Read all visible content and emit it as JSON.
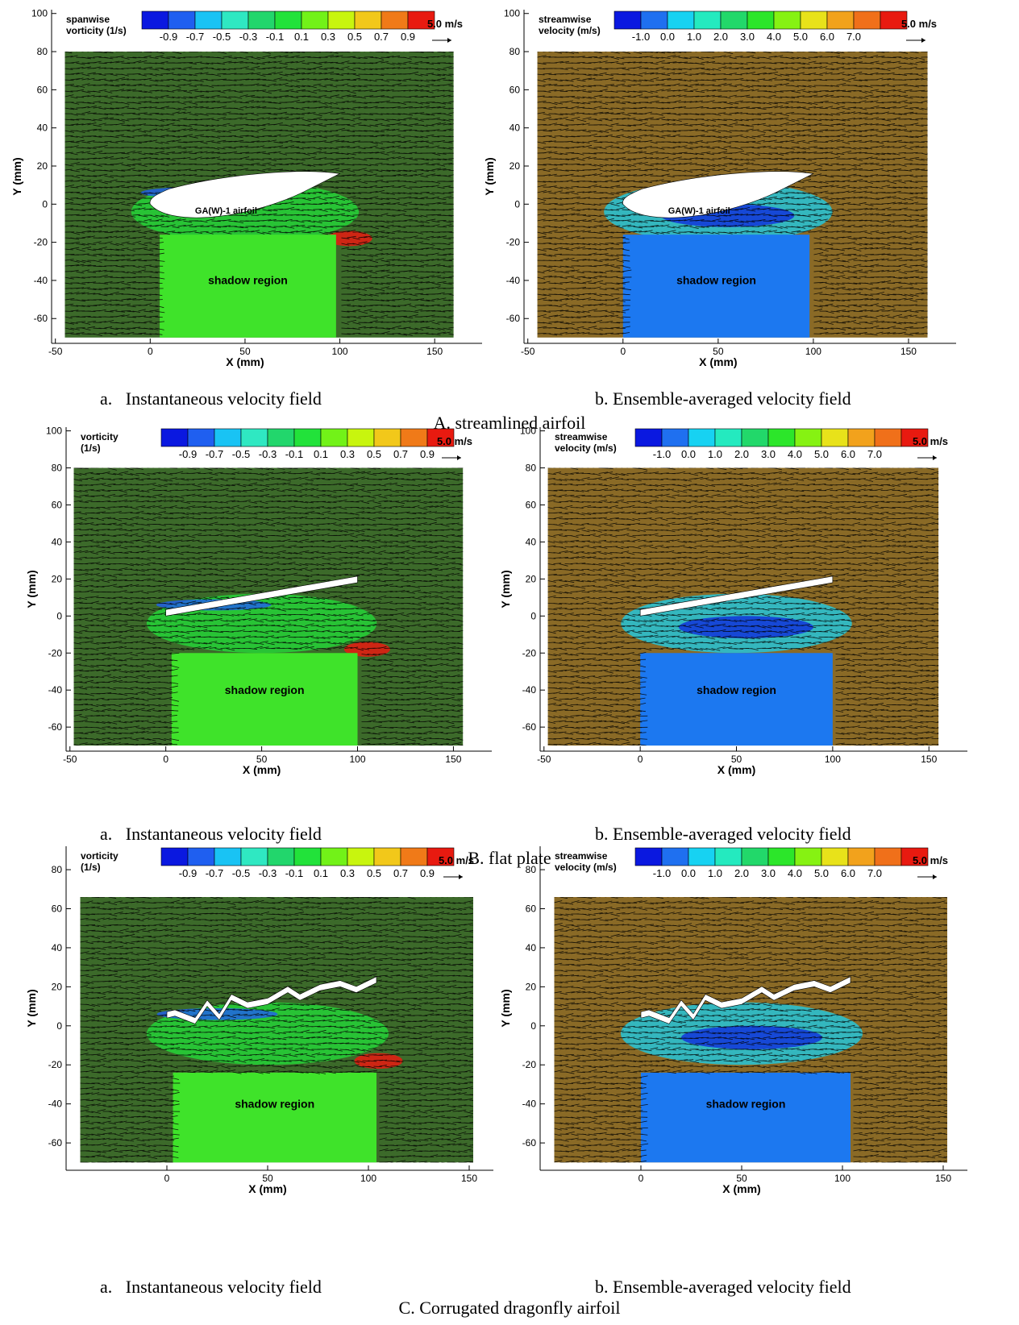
{
  "colors": {
    "vorticity_scale": [
      "#0a18e0",
      "#1f5ff0",
      "#19c3f4",
      "#2fe8c2",
      "#22d66c",
      "#22e23a",
      "#72f218",
      "#c8f50e",
      "#f2c81a",
      "#f07a18",
      "#e81a10"
    ],
    "velocity_scale": [
      "#0a18e0",
      "#1f70f0",
      "#17d2f2",
      "#24eabf",
      "#22d86a",
      "#2ce62a",
      "#86f212",
      "#e8e21a",
      "#f2a21c",
      "#f0701a",
      "#e81a10"
    ],
    "shadow_vorticity": "#3fe32a",
    "shadow_velocity": "#1c78f0",
    "field_vorticity": "#3c6a2a",
    "field_velocity": "#8a6a26",
    "arrows": "#000000",
    "airfoil": "#ffffff"
  },
  "rows": [
    {
      "id": "A",
      "caption": "A. streamlined airfoil",
      "panels": [
        {
          "caption": "a.   Instantaneous velocity field",
          "chart_data": {
            "type": "vector-contour",
            "field": "vorticity",
            "legend_title": [
              "spanwise",
              "vorticity (1/s)"
            ],
            "legend_ticks": [
              "-0.9",
              "-0.7",
              "-0.5",
              "-0.3",
              "-0.1",
              "0.1",
              "0.3",
              "0.5",
              "0.7",
              "0.9"
            ],
            "reference_vector": "5.0 m/s",
            "xlabel": "X (mm)",
            "ylabel": "Y (mm)",
            "xlim": [
              -52,
              175
            ],
            "ylim": [
              -73,
              102
            ],
            "xticks": [
              "-50",
              "0",
              "50",
              "100",
              "150"
            ],
            "yticks": [
              "-60",
              "-40",
              "-20",
              "0",
              "20",
              "40",
              "60",
              "80",
              "100"
            ],
            "field_extent": {
              "x": [
                -45,
                160
              ],
              "y": [
                -70,
                80
              ]
            },
            "body": "airfoil",
            "body_label": "GA(W)-1 airfoil",
            "shadow_label": "shadow region",
            "shadow_extent": {
              "x": [
                5,
                98
              ],
              "y": [
                -70,
                -16
              ]
            }
          }
        },
        {
          "caption": "b. Ensemble-averaged velocity field",
          "chart_data": {
            "type": "vector-contour",
            "field": "velocity",
            "legend_title": [
              "streamwise",
              "velocity (m/s)"
            ],
            "legend_ticks": [
              "-1.0",
              "0.0",
              "1.0",
              "2.0",
              "3.0",
              "4.0",
              "5.0",
              "6.0",
              "7.0"
            ],
            "reference_vector": "5.0 m/s",
            "xlabel": "X (mm)",
            "ylabel": "Y (mm)",
            "xlim": [
              -52,
              175
            ],
            "ylim": [
              -73,
              102
            ],
            "xticks": [
              "-50",
              "0",
              "50",
              "100",
              "150"
            ],
            "yticks": [
              "-60",
              "-40",
              "-20",
              "0",
              "20",
              "40",
              "60",
              "80",
              "100"
            ],
            "field_extent": {
              "x": [
                -45,
                160
              ],
              "y": [
                -70,
                80
              ]
            },
            "body": "airfoil",
            "body_label": "GA(W)-1 airfoil",
            "shadow_label": "shadow region",
            "shadow_extent": {
              "x": [
                0,
                98
              ],
              "y": [
                -70,
                -16
              ]
            }
          }
        }
      ]
    },
    {
      "id": "B",
      "caption": "B. flat plate",
      "panels": [
        {
          "caption": "a.   Instantaneous velocity field",
          "chart_data": {
            "type": "vector-contour",
            "field": "vorticity",
            "legend_title": [
              "vorticity",
              "(1/s)"
            ],
            "legend_ticks": [
              "-0.9",
              "-0.7",
              "-0.5",
              "-0.3",
              "-0.1",
              "0.1",
              "0.3",
              "0.5",
              "0.7",
              "0.9"
            ],
            "reference_vector": "5.0 m/s",
            "xlabel": "X (mm)",
            "ylabel": "Y (mm)",
            "xlim": [
              -52,
              170
            ],
            "ylim": [
              -73,
              102
            ],
            "xticks": [
              "-50",
              "0",
              "50",
              "100",
              "150"
            ],
            "yticks": [
              "-60",
              "-40",
              "-20",
              "0",
              "20",
              "40",
              "60",
              "80",
              "100"
            ],
            "field_extent": {
              "x": [
                -48,
                155
              ],
              "y": [
                -70,
                80
              ]
            },
            "body": "plate",
            "shadow_label": "shadow region",
            "shadow_extent": {
              "x": [
                3,
                100
              ],
              "y": [
                -70,
                -20
              ]
            }
          }
        },
        {
          "caption": "b. Ensemble-averaged velocity field",
          "chart_data": {
            "type": "vector-contour",
            "field": "velocity",
            "legend_title": [
              "streamwise",
              "velocity (m/s)"
            ],
            "legend_ticks": [
              "-1.0",
              "0.0",
              "1.0",
              "2.0",
              "3.0",
              "4.0",
              "5.0",
              "6.0",
              "7.0"
            ],
            "reference_vector": "5.0 m/s",
            "xlabel": "X (mm)",
            "ylabel": "Y (mm)",
            "xlim": [
              -52,
              170
            ],
            "ylim": [
              -73,
              102
            ],
            "xticks": [
              "-50",
              "0",
              "50",
              "100",
              "150"
            ],
            "yticks": [
              "-60",
              "-40",
              "-20",
              "0",
              "20",
              "40",
              "60",
              "80",
              "100"
            ],
            "field_extent": {
              "x": [
                -48,
                155
              ],
              "y": [
                -70,
                80
              ]
            },
            "body": "plate",
            "shadow_label": "shadow region",
            "shadow_extent": {
              "x": [
                0,
                100
              ],
              "y": [
                -70,
                -20
              ]
            }
          }
        }
      ]
    },
    {
      "id": "C",
      "caption": "C. Corrugated dragonfly airfoil",
      "panels": [
        {
          "caption": "a.   Instantaneous velocity field",
          "chart_data": {
            "type": "vector-contour",
            "field": "vorticity",
            "legend_title": [
              "vorticity",
              "(1/s)"
            ],
            "legend_ticks": [
              "-0.9",
              "-0.7",
              "-0.5",
              "-0.3",
              "-0.1",
              "0.1",
              "0.3",
              "0.5",
              "0.7",
              "0.9"
            ],
            "reference_vector": "5.0 m/s",
            "xlabel": "X (mm)",
            "ylabel": "Y (mm)",
            "xlim": [
              -50,
              162
            ],
            "ylim": [
              -74,
              92
            ],
            "xticks": [
              "0",
              "50",
              "100",
              "150"
            ],
            "yticks": [
              "-60",
              "-40",
              "-20",
              "0",
              "20",
              "40",
              "60",
              "80"
            ],
            "field_extent": {
              "x": [
                -43,
                152
              ],
              "y": [
                -70,
                66
              ]
            },
            "body": "corrugated",
            "shadow_label": "shadow region",
            "shadow_extent": {
              "x": [
                3,
                104
              ],
              "y": [
                -70,
                -24
              ]
            }
          }
        },
        {
          "caption": "b. Ensemble-averaged velocity field",
          "chart_data": {
            "type": "vector-contour",
            "field": "velocity",
            "legend_title": [
              "streamwise",
              "velocity (m/s)"
            ],
            "legend_ticks": [
              "-1.0",
              "0.0",
              "1.0",
              "2.0",
              "3.0",
              "4.0",
              "5.0",
              "6.0",
              "7.0"
            ],
            "reference_vector": "5.0 m/s",
            "xlabel": "X (mm)",
            "ylabel": "Y (mm)",
            "xlim": [
              -50,
              162
            ],
            "ylim": [
              -74,
              92
            ],
            "xticks": [
              "0",
              "50",
              "100",
              "150"
            ],
            "yticks": [
              "-60",
              "-40",
              "-20",
              "0",
              "20",
              "40",
              "60",
              "80"
            ],
            "field_extent": {
              "x": [
                -43,
                152
              ],
              "y": [
                -70,
                66
              ]
            },
            "body": "corrugated",
            "shadow_label": "shadow region",
            "shadow_extent": {
              "x": [
                0,
                104
              ],
              "y": [
                -70,
                -24
              ]
            }
          }
        }
      ]
    }
  ]
}
